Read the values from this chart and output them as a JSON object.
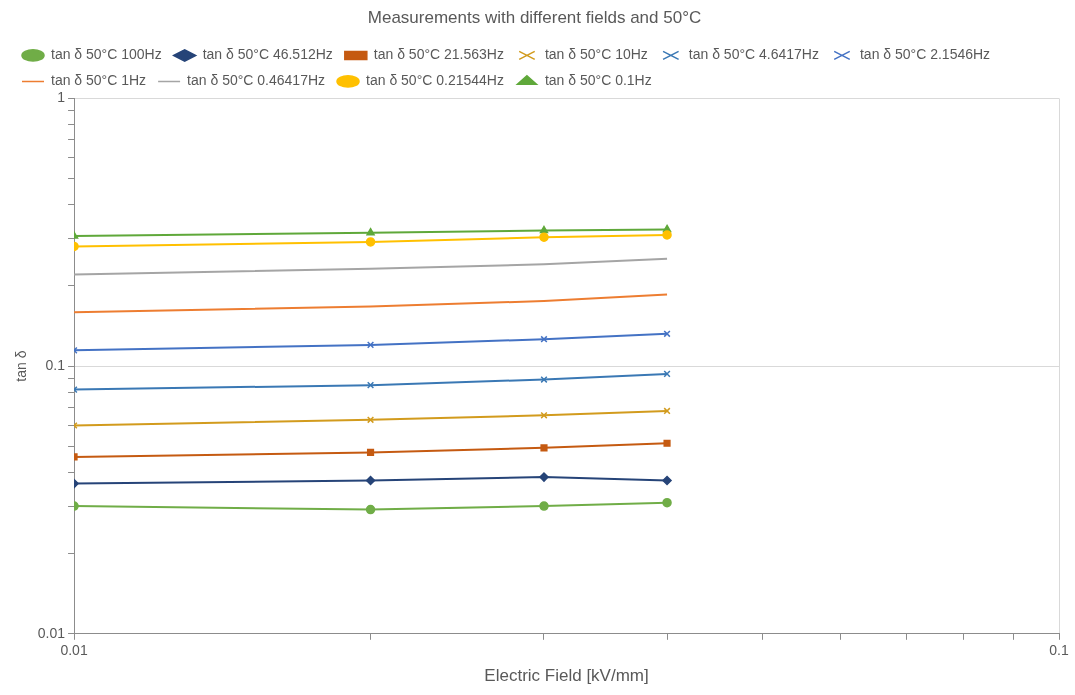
{
  "chart_data": {
    "type": "line",
    "title": "Measurements with different fields and 50°C",
    "xlabel": "Electric Field [kV/mm]",
    "ylabel": "tan δ",
    "x": [
      0.01,
      0.02,
      0.03,
      0.04
    ],
    "series": [
      {
        "name": "tan δ 50°C 100Hz",
        "color": "#70ad47",
        "marker": "circle",
        "values": [
          0.03,
          0.0291,
          0.03,
          0.0309
        ]
      },
      {
        "name": "tan δ 50°C 46.512Hz",
        "color": "#264478",
        "marker": "diamond",
        "values": [
          0.0364,
          0.0374,
          0.0385,
          0.0374
        ]
      },
      {
        "name": "tan δ 50°C 21.563Hz",
        "color": "#c55a11",
        "marker": "square",
        "values": [
          0.0458,
          0.0476,
          0.0495,
          0.0515
        ]
      },
      {
        "name": "tan δ 50°C 10Hz",
        "color": "#d29b1d",
        "marker": "cross",
        "values": [
          0.06,
          0.063,
          0.0655,
          0.068
        ]
      },
      {
        "name": "tan δ 50°C 4.6417Hz",
        "color": "#3a78b4",
        "marker": "cross",
        "values": [
          0.0817,
          0.0849,
          0.0891,
          0.0935
        ]
      },
      {
        "name": "tan δ 50°C 2.1546Hz",
        "color": "#4472c4",
        "marker": "cross",
        "values": [
          0.1145,
          0.12,
          0.126,
          0.132
        ]
      },
      {
        "name": "tan δ 50°C 1Hz",
        "color": "#ed7d31",
        "marker": "none",
        "values": [
          0.159,
          0.167,
          0.175,
          0.185
        ]
      },
      {
        "name": "tan δ 50°C 0.46417Hz",
        "color": "#a5a5a5",
        "marker": "none",
        "values": [
          0.22,
          0.231,
          0.24,
          0.252
        ]
      },
      {
        "name": "tan δ 50°C 0.21544Hz",
        "color": "#ffc000",
        "marker": "circle",
        "values": [
          0.28,
          0.291,
          0.303,
          0.309
        ]
      },
      {
        "name": "tan δ 50°C 0.1Hz",
        "color": "#5fa83a",
        "marker": "triangle",
        "values": [
          0.306,
          0.315,
          0.321,
          0.324
        ]
      }
    ],
    "log": "xy",
    "xlim": [
      0.01,
      0.1
    ],
    "ylim": [
      0.01,
      1
    ],
    "xticks": [
      0.01,
      {
        "value": 0.02,
        "label": null
      },
      {
        "value": 0.03,
        "label": null
      },
      {
        "value": 0.04,
        "label": null
      },
      {
        "value": 0.05,
        "label": null
      },
      {
        "value": 0.06,
        "label": null
      },
      {
        "value": 0.07,
        "label": null
      },
      {
        "value": 0.08,
        "label": null
      },
      {
        "value": 0.09,
        "label": null
      },
      0.1
    ],
    "yticks": [
      0.01,
      {
        "value": 0.02,
        "label": null
      },
      {
        "value": 0.03,
        "label": null
      },
      {
        "value": 0.04,
        "label": null
      },
      {
        "value": 0.05,
        "label": null
      },
      {
        "value": 0.06,
        "label": null
      },
      {
        "value": 0.07,
        "label": null
      },
      {
        "value": 0.08,
        "label": null
      },
      {
        "value": 0.09,
        "label": null
      },
      0.1,
      {
        "value": 0.2,
        "label": null
      },
      {
        "value": 0.3,
        "label": null
      },
      {
        "value": 0.4,
        "label": null
      },
      {
        "value": 0.5,
        "label": null
      },
      {
        "value": 0.6,
        "label": null
      },
      {
        "value": 0.7,
        "label": null
      },
      {
        "value": 0.8,
        "label": null
      },
      {
        "value": 0.9,
        "label": null
      },
      1
    ],
    "grid": true,
    "legend": "top"
  }
}
